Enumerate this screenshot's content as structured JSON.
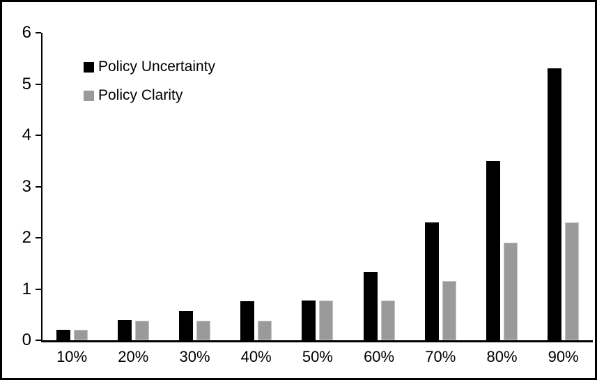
{
  "chart_data": {
    "type": "bar",
    "title": "",
    "xlabel": "",
    "ylabel": "",
    "categories": [
      "10%",
      "20%",
      "30%",
      "40%",
      "50%",
      "60%",
      "70%",
      "80%",
      "90%"
    ],
    "series": [
      {
        "name": "Policy Uncertainty",
        "color": "#000000",
        "values": [
          0.2,
          0.4,
          0.57,
          0.76,
          0.78,
          1.33,
          2.3,
          3.5,
          5.3
        ]
      },
      {
        "name": "Policy Clarity",
        "color": "#9a9a9a",
        "values": [
          0.2,
          0.38,
          0.38,
          0.38,
          0.77,
          0.77,
          1.15,
          1.9,
          2.3
        ]
      }
    ],
    "ylim": [
      0,
      6
    ],
    "yticks": [
      0,
      1,
      2,
      3,
      4,
      5,
      6
    ],
    "grid": false,
    "legend_position": "top-left",
    "frame_border_color": "#000000",
    "background_color": "#ffffff"
  }
}
